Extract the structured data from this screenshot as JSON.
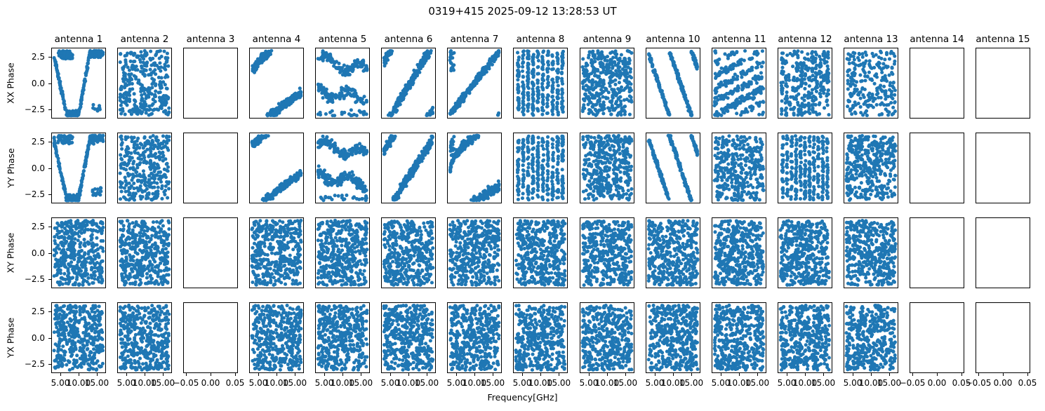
{
  "chart_data": {
    "type": "scatter",
    "title": "0319+415 2025-09-12 13:28:53 UT",
    "xlabel": "Frequency[GHz]",
    "marker_color": "#1f77b4",
    "background_color": "#ffffff",
    "grid": false,
    "rows": [
      "XX Phase",
      "YY Phase",
      "XY Phase",
      "YX Phase"
    ],
    "columns": [
      "antenna 1",
      "antenna 2",
      "antenna 3",
      "antenna 4",
      "antenna 5",
      "antenna 6",
      "antenna 7",
      "antenna 8",
      "antenna 9",
      "antenna 10",
      "antenna 11",
      "antenna 12",
      "antenna 13",
      "antenna 14",
      "antenna 15"
    ],
    "empty_columns_zero_based": [
      2,
      13,
      14
    ],
    "ylim": [
      -3.35,
      3.35
    ],
    "ytick_labels": [
      "2.5",
      "0.0",
      "−2.5"
    ],
    "ytick_values": [
      2.5,
      0.0,
      -2.5
    ],
    "xlim_ghz": [
      2.5,
      17.5
    ],
    "xtick_labels_data_panels": [
      "5.00",
      "10.00",
      "15.00"
    ],
    "xtick_fracs_data_panels": [
      0.167,
      0.5,
      0.833
    ],
    "xtick_labels_empty_panels": [
      "−0.05",
      "0.00",
      "0.05"
    ],
    "xtick_fracs_empty_panels": [
      0.05,
      0.5,
      0.95
    ],
    "panels": [
      [
        {
          "p": "vshape",
          "seed": 101,
          "n": 360
        },
        {
          "p": "random",
          "seed": 102,
          "n": 330
        },
        null,
        {
          "p": "wraprise",
          "seed": 104,
          "n": 300,
          "a": 1.0,
          "b": 4.3,
          "c": 0.7,
          "s": 0.35
        },
        {
          "p": "bands",
          "seed": 105,
          "n": 300
        },
        {
          "p": "linewrap",
          "seed": 106,
          "n": 300,
          "a": 2.0,
          "b": 8.0,
          "s": 0.4
        },
        {
          "p": "wraprise",
          "seed": 107,
          "n": 310,
          "a": -3.05,
          "b": 6.1,
          "c": 1.0,
          "s": 0.3,
          "lc": 1
        },
        {
          "p": "stripes",
          "seed": 108,
          "n": 380,
          "k": 10
        },
        {
          "p": "random",
          "seed": 109,
          "n": 400
        },
        {
          "p": "linewrap",
          "seed": 110,
          "n": 280,
          "a": 2.8,
          "b": -14.0,
          "s": 0.25
        },
        {
          "p": "diagstripes",
          "seed": 111,
          "n": 340
        },
        {
          "p": "stripes",
          "seed": 112,
          "n": 330,
          "k": 13,
          "j": 0.025
        },
        {
          "p": "random",
          "seed": 113,
          "n": 240
        },
        null,
        null
      ],
      [
        {
          "p": "vshape",
          "seed": 201,
          "n": 360
        },
        {
          "p": "random",
          "seed": 202,
          "n": 330
        },
        null,
        {
          "p": "wraprise",
          "seed": 204,
          "n": 300,
          "a": 2.2,
          "b": 3.6,
          "c": 1.0,
          "s": 0.3
        },
        {
          "p": "bands",
          "seed": 205,
          "n": 300
        },
        {
          "p": "linewrap",
          "seed": 206,
          "n": 300,
          "a": 1.6,
          "b": 7.5,
          "s": 0.4
        },
        {
          "p": "wraprise",
          "seed": 207,
          "n": 310,
          "a": -0.5,
          "b": 5.0,
          "c": 0.5,
          "s": 0.35,
          "lc": 1
        },
        {
          "p": "stripes",
          "seed": 208,
          "n": 380,
          "k": 10
        },
        {
          "p": "random",
          "seed": 209,
          "n": 400
        },
        {
          "p": "linewrap",
          "seed": 210,
          "n": 280,
          "a": 2.8,
          "b": -14.0,
          "s": 0.25
        },
        {
          "p": "random",
          "seed": 211,
          "n": 360
        },
        {
          "p": "stripes",
          "seed": 212,
          "n": 360,
          "k": 11
        },
        {
          "p": "random",
          "seed": 213,
          "n": 380
        },
        null,
        null
      ],
      [
        {
          "p": "random",
          "seed": 301,
          "n": 420
        },
        {
          "p": "random",
          "seed": 302,
          "n": 420
        },
        null,
        {
          "p": "random",
          "seed": 304,
          "n": 420
        },
        {
          "p": "random",
          "seed": 305,
          "n": 420
        },
        {
          "p": "random",
          "seed": 306,
          "n": 420
        },
        {
          "p": "random",
          "seed": 307,
          "n": 420
        },
        {
          "p": "random",
          "seed": 308,
          "n": 420
        },
        {
          "p": "random",
          "seed": 309,
          "n": 420
        },
        {
          "p": "random",
          "seed": 310,
          "n": 420
        },
        {
          "p": "random",
          "seed": 311,
          "n": 420
        },
        {
          "p": "random",
          "seed": 312,
          "n": 420
        },
        {
          "p": "random",
          "seed": 313,
          "n": 420
        },
        null,
        null
      ],
      [
        {
          "p": "random",
          "seed": 401,
          "n": 420
        },
        {
          "p": "random",
          "seed": 402,
          "n": 420
        },
        null,
        {
          "p": "random",
          "seed": 404,
          "n": 420
        },
        {
          "p": "random",
          "seed": 405,
          "n": 420
        },
        {
          "p": "random",
          "seed": 406,
          "n": 420
        },
        {
          "p": "random",
          "seed": 407,
          "n": 420
        },
        {
          "p": "random",
          "seed": 408,
          "n": 420
        },
        {
          "p": "random",
          "seed": 409,
          "n": 420
        },
        {
          "p": "random",
          "seed": 410,
          "n": 420
        },
        {
          "p": "random",
          "seed": 411,
          "n": 420
        },
        {
          "p": "random",
          "seed": 412,
          "n": 420
        },
        {
          "p": "random",
          "seed": 413,
          "n": 420
        },
        null,
        null
      ]
    ]
  }
}
